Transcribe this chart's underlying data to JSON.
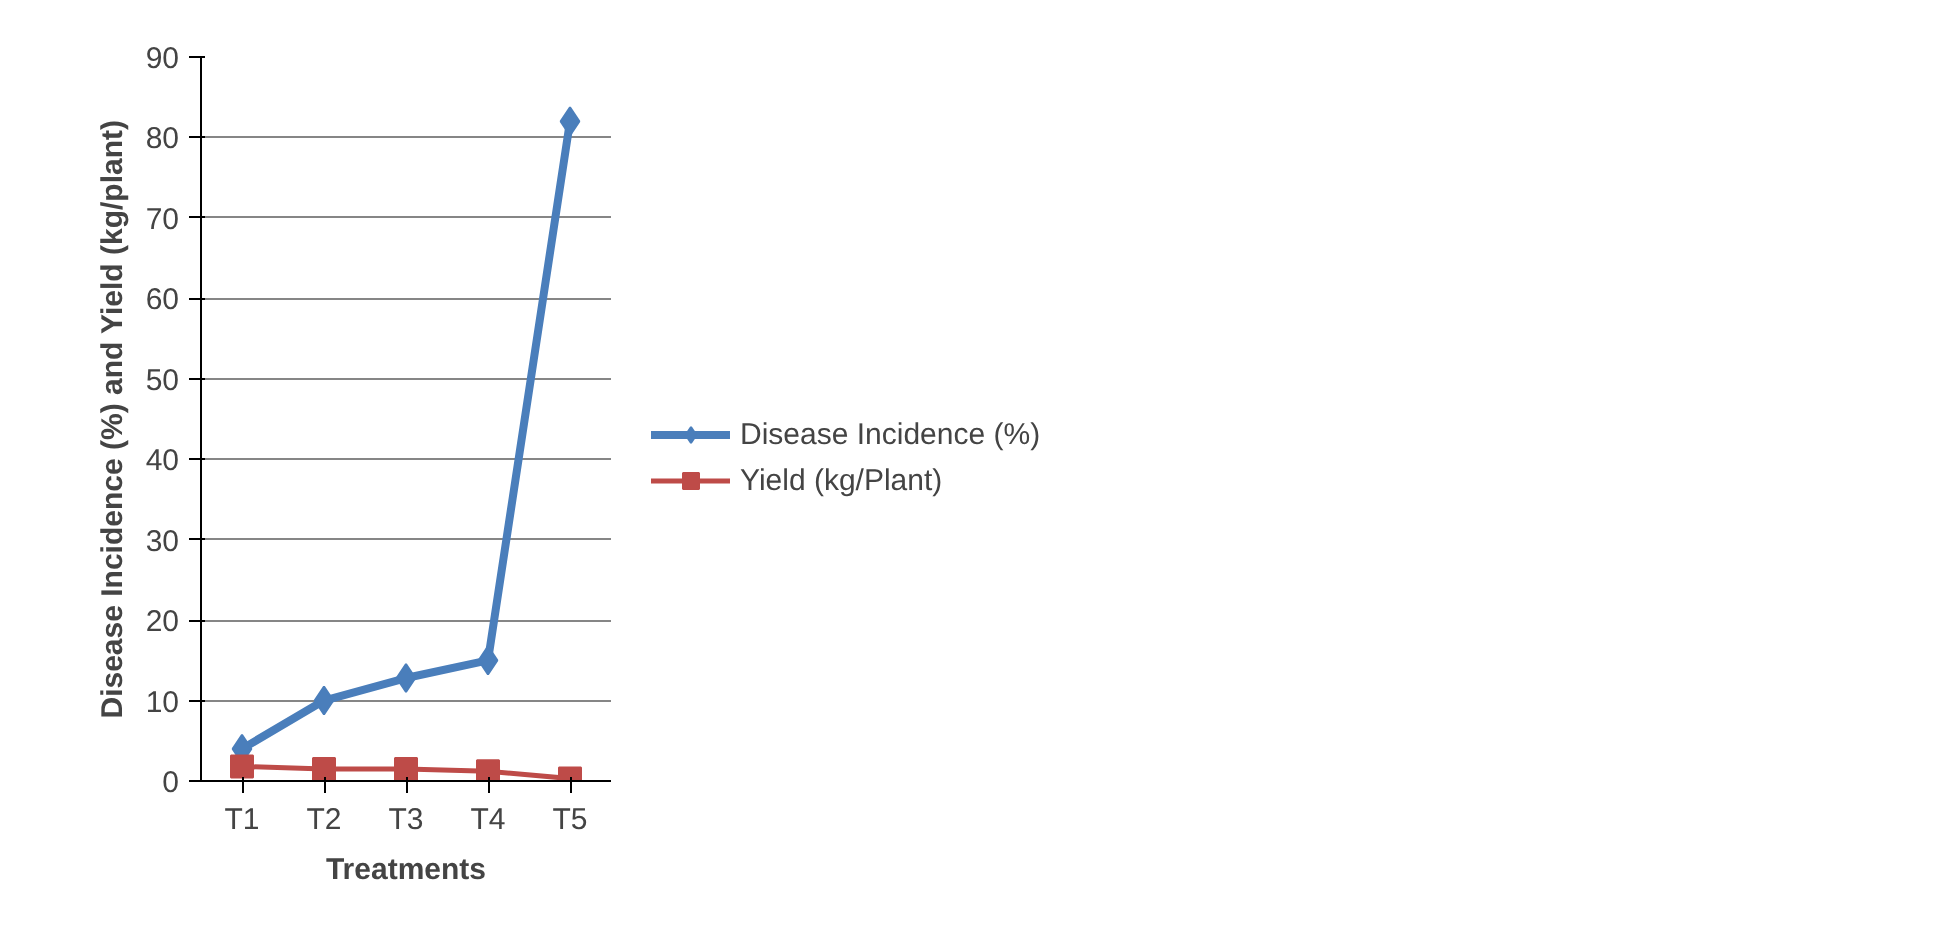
{
  "chart_data": {
    "type": "line",
    "xlabel": "Treatments",
    "ylabel": "Disease Incidence (%) and Yield (kg/plant)",
    "categories": [
      "T1",
      "T2",
      "T3",
      "T4",
      "T5"
    ],
    "series": [
      {
        "name": "Disease Incidence (%)",
        "color": "#4a7ebb",
        "values": [
          4,
          10,
          12.8,
          15,
          82
        ],
        "marker": "diamond"
      },
      {
        "name": "Yield (kg/Plant)",
        "color": "#be4b48",
        "values": [
          1.8,
          1.5,
          1.5,
          1.2,
          0.3
        ],
        "marker": "square"
      }
    ],
    "ylim": [
      0,
      90
    ],
    "yticks": [
      0,
      10,
      20,
      30,
      40,
      50,
      60,
      70,
      80,
      90
    ],
    "grid": "y",
    "legend": "right",
    "line_style": "solid"
  }
}
